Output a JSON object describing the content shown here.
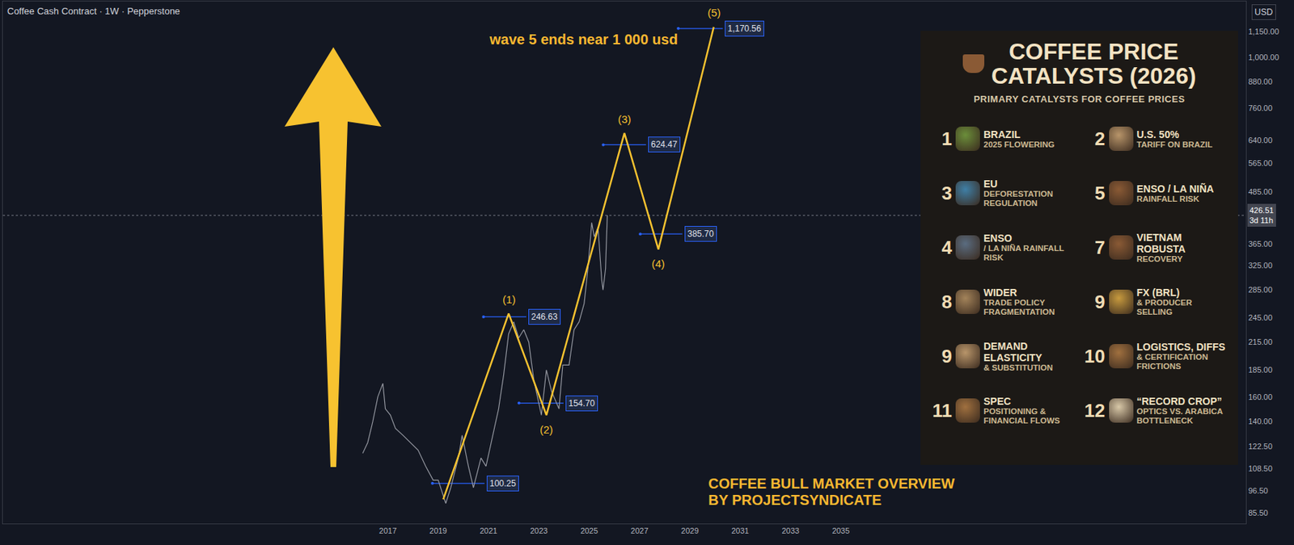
{
  "chart_data": {
    "type": "line",
    "title": "Coffee Cash Contract · 1W · Pepperstone",
    "log": "y",
    "grid": false,
    "currency": "USD",
    "xlim": [
      2001.7,
      2051.1
    ],
    "xticks": [
      2017,
      2019,
      2021,
      2023,
      2025,
      2027,
      2029,
      2031,
      2033,
      2035
    ],
    "ylim": [
      80.7,
      1355
    ],
    "yticks": [
      {
        "value": 85.5,
        "label": "85.50"
      },
      {
        "value": 96.5,
        "label": "96.50"
      },
      {
        "value": 108.5,
        "label": "108.50"
      },
      {
        "value": 122.5,
        "label": "122.50"
      },
      {
        "value": 140,
        "label": "140.00"
      },
      {
        "value": 160,
        "label": "160.00"
      },
      {
        "value": 185,
        "label": "185.00"
      },
      {
        "value": 215,
        "label": "215.00"
      },
      {
        "value": 245,
        "label": "245.00"
      },
      {
        "value": 285,
        "label": "285.00"
      },
      {
        "value": 325,
        "label": "325.00"
      },
      {
        "value": 365,
        "label": "365.00"
      },
      {
        "value": 485,
        "label": "485.00"
      },
      {
        "value": 565,
        "label": "565.00"
      },
      {
        "value": 640,
        "label": "640.00"
      },
      {
        "value": 760,
        "label": "760.00"
      },
      {
        "value": 880,
        "label": "880.00"
      },
      {
        "value": 1000,
        "label": "1,000.00"
      },
      {
        "value": 1150,
        "label": "1,150.00"
      }
    ],
    "series": [
      {
        "color": "#9598a1",
        "line_style": "solid",
        "x": [
          2016.0,
          2016.2,
          2016.4,
          2016.6,
          2016.8,
          2016.9,
          2017.1,
          2017.3,
          2017.6,
          2017.9,
          2018.2,
          2018.5,
          2018.8,
          2019.0,
          2019.3,
          2019.5,
          2019.8,
          2019.95,
          2020.2,
          2020.4,
          2020.7,
          2020.9,
          2021.1,
          2021.4,
          2021.6,
          2021.8,
          2022.0,
          2022.2,
          2022.4,
          2022.6,
          2022.8,
          2022.95,
          2023.1,
          2023.3,
          2023.5,
          2023.8,
          2023.95,
          2024.2,
          2024.4,
          2024.6,
          2024.8,
          2024.95,
          2025.1,
          2025.2,
          2025.35,
          2025.5,
          2025.55,
          2025.65,
          2025.72
        ],
        "values": [
          118,
          125,
          140,
          160,
          172,
          150,
          145,
          135,
          130,
          125,
          120,
          110,
          102,
          102,
          90,
          98,
          115,
          130,
          110,
          98,
          115,
          110,
          125,
          150,
          180,
          225,
          240,
          220,
          230,
          215,
          175,
          160,
          145,
          185,
          165,
          150,
          190,
          190,
          230,
          240,
          265,
          320,
          410,
          380,
          400,
          300,
          285,
          320,
          426.51
        ]
      },
      {
        "color": "#f7c230",
        "line_style": "solid",
        "x": [
          2019.2,
          2021.8,
          2023.3,
          2026.4,
          2027.75,
          2029.95
        ],
        "values": [
          92,
          251,
          145,
          665,
          355,
          1180
        ],
        "point_labels": [
          null,
          "(1)",
          "(2)",
          "(3)",
          "(4)",
          "(5)"
        ]
      }
    ],
    "levels": [
      {
        "value": 100.25,
        "label": "100.25",
        "x": [
          2018.77,
          2020.84
        ]
      },
      {
        "value": 246.63,
        "label": "246.63",
        "x": [
          2020.8,
          2022.5
        ]
      },
      {
        "value": 154.7,
        "label": "154.70",
        "x": [
          2022.21,
          2023.98
        ]
      },
      {
        "value": 624.47,
        "label": "624.47",
        "x": [
          2025.56,
          2027.26
        ]
      },
      {
        "value": 385.7,
        "label": "385.70",
        "x": [
          2027.03,
          2028.7
        ]
      },
      {
        "value": 1170.56,
        "label": "1,170.56",
        "x": [
          2028.54,
          2030.31
        ]
      }
    ],
    "current_price": {
      "value": 426.51,
      "label": "426.51",
      "countdown": "3d 11h"
    },
    "annotations": [
      "wave 5 ends near 1 000 usd"
    ],
    "footer": [
      "COFFEE BULL MARKET OVERVIEW",
      "BY PROJECTSYNDICATE"
    ]
  },
  "catalyst_panel": {
    "title": [
      "COFFEE PRICE",
      "CATALYSTS (2026)"
    ],
    "subtitle": "PRIMARY CATALYSTS FOR COFFEE PRICES",
    "items": [
      {
        "number": 1,
        "head": "BRAZIL",
        "sub": "2025 FLOWERING"
      },
      {
        "number": 2,
        "head": "U.S. 50%",
        "sub": "TARIFF ON BRAZIL"
      },
      {
        "number": 3,
        "head": "EU",
        "sub": "DEFORESTATION REGULATION"
      },
      {
        "number": 5,
        "head": "ENSO / LA NIÑA",
        "sub": "RAINFALL RISK"
      },
      {
        "number": 4,
        "head": "ENSO",
        "sub": "/ LA NIÑA RAINFALL RISK"
      },
      {
        "number": 7,
        "head": "VIETNAM ROBUSTA",
        "sub": "RECOVERY"
      },
      {
        "number": 8,
        "head": "WIDER",
        "sub": "TRADE POLICY FRAGMENTATION"
      },
      {
        "number": 9,
        "head": "FX (BRL)",
        "sub": "& PRODUCER SELLING"
      },
      {
        "number": 9,
        "head": "DEMAND ELASTICITY",
        "sub": "& SUBSTITUTION"
      },
      {
        "number": 10,
        "head": "LOGISTICS, DIFFS",
        "sub": "& CERTIFICATION FRICTIONS"
      },
      {
        "number": 11,
        "head": "SPEC",
        "sub": "POSITIONING & FINANCIAL FLOWS"
      },
      {
        "number": 12,
        "head": "“RECORD CROP”",
        "sub": "OPTICS VS. ARABICA BOTTLENECK"
      }
    ]
  }
}
